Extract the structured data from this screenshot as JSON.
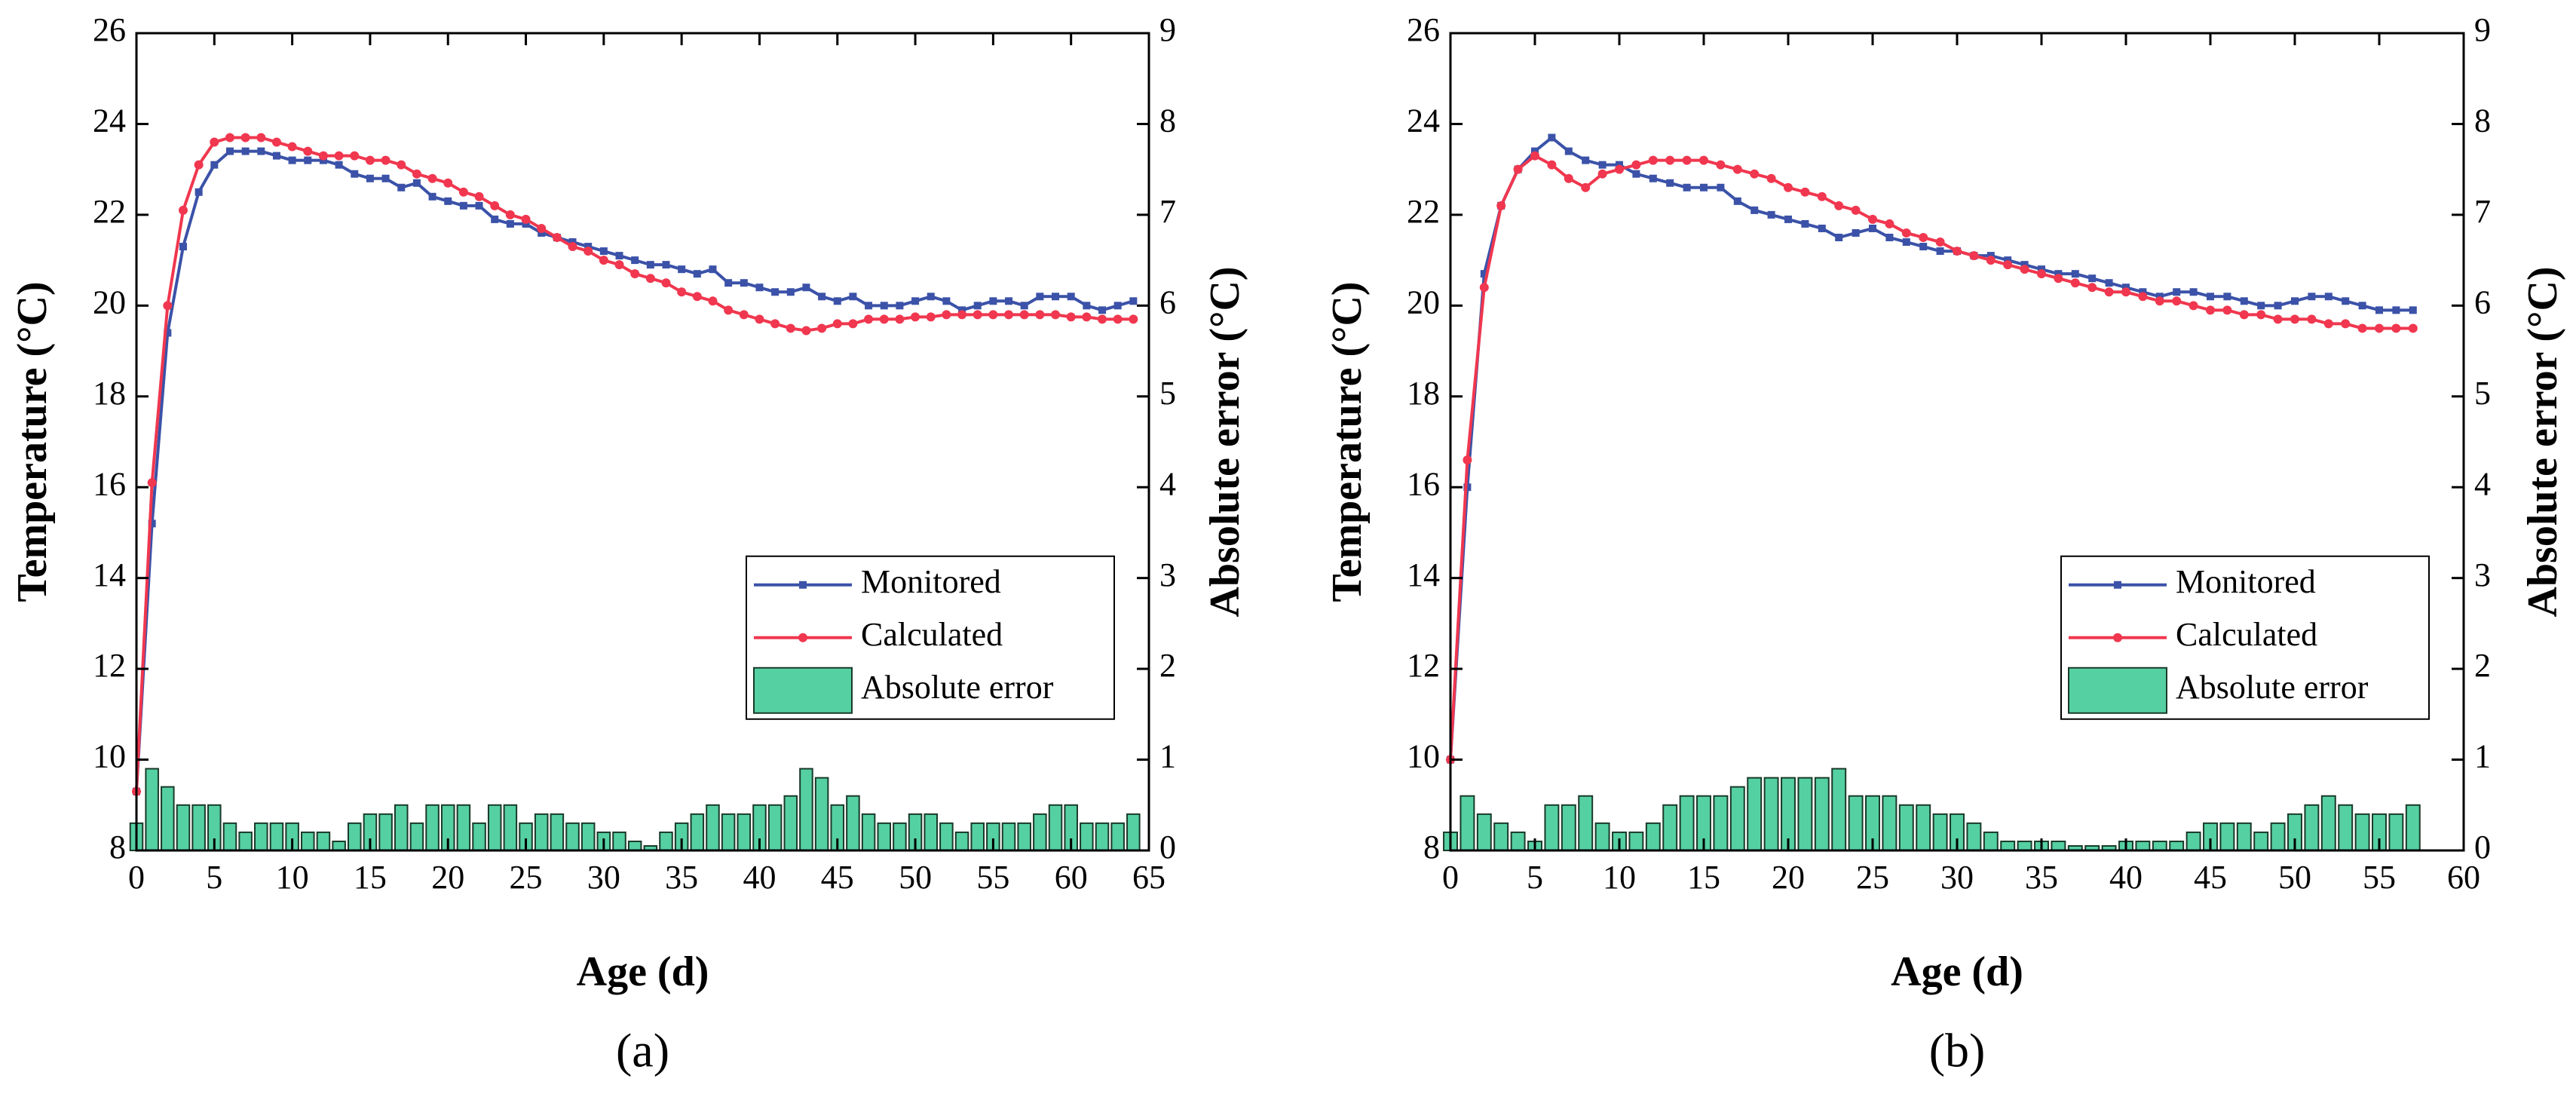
{
  "chart_data": [
    {
      "type": "line",
      "label": "(a)",
      "xlabel": "Age (d)",
      "ylabel": "Temperature (°C)",
      "y2label": "Absolute error (°C)",
      "xlim": [
        0,
        65
      ],
      "xticks": [
        0,
        5,
        10,
        15,
        20,
        25,
        30,
        35,
        40,
        45,
        50,
        55,
        60,
        65
      ],
      "ylim": [
        8,
        26
      ],
      "yticks": [
        8,
        10,
        12,
        14,
        16,
        18,
        20,
        22,
        24,
        26
      ],
      "y2lim": [
        0,
        9
      ],
      "y2ticks": [
        0,
        1,
        2,
        3,
        4,
        5,
        6,
        7,
        8,
        9
      ],
      "legend": "center right",
      "x": [
        0,
        1,
        2,
        3,
        4,
        5,
        6,
        7,
        8,
        9,
        10,
        11,
        12,
        13,
        14,
        15,
        16,
        17,
        18,
        19,
        20,
        21,
        22,
        23,
        24,
        25,
        26,
        27,
        28,
        29,
        30,
        31,
        32,
        33,
        34,
        35,
        36,
        37,
        38,
        39,
        40,
        41,
        42,
        43,
        44,
        45,
        46,
        47,
        48,
        49,
        50,
        51,
        52,
        53,
        54,
        55,
        56,
        57,
        58,
        59,
        60,
        61,
        62,
        63,
        64
      ],
      "series": [
        {
          "name": "Monitored",
          "color": "#3b52a8",
          "marker": "square",
          "values": [
            9.3,
            15.2,
            19.4,
            21.3,
            22.5,
            23.1,
            23.4,
            23.4,
            23.4,
            23.3,
            23.2,
            23.2,
            23.2,
            23.1,
            22.9,
            22.8,
            22.8,
            22.6,
            22.7,
            22.4,
            22.3,
            22.2,
            22.2,
            21.9,
            21.8,
            21.8,
            21.6,
            21.5,
            21.4,
            21.3,
            21.2,
            21.1,
            21.0,
            20.9,
            20.9,
            20.8,
            20.7,
            20.8,
            20.5,
            20.5,
            20.4,
            20.3,
            20.3,
            20.4,
            20.2,
            20.1,
            20.2,
            20.0,
            20.0,
            20.0,
            20.1,
            20.2,
            20.1,
            19.9,
            20.0,
            20.1,
            20.1,
            20.0,
            20.2,
            20.2,
            20.2,
            20.0,
            19.9,
            20.0,
            20.1
          ]
        },
        {
          "name": "Calculated",
          "color": "#f0374f",
          "marker": "circle",
          "values": [
            9.3,
            16.1,
            20.0,
            22.1,
            23.1,
            23.6,
            23.7,
            23.7,
            23.7,
            23.6,
            23.5,
            23.4,
            23.3,
            23.3,
            23.3,
            23.2,
            23.2,
            23.1,
            22.9,
            22.8,
            22.7,
            22.5,
            22.4,
            22.2,
            22.0,
            21.9,
            21.7,
            21.5,
            21.3,
            21.2,
            21.0,
            20.9,
            20.7,
            20.6,
            20.5,
            20.3,
            20.2,
            20.1,
            19.9,
            19.8,
            19.7,
            19.6,
            19.5,
            19.45,
            19.5,
            19.6,
            19.6,
            19.7,
            19.7,
            19.7,
            19.75,
            19.75,
            19.8,
            19.8,
            19.8,
            19.8,
            19.8,
            19.8,
            19.8,
            19.8,
            19.75,
            19.75,
            19.7,
            19.7,
            19.7
          ]
        },
        {
          "name": "Absolute error",
          "color": "#55d0a3",
          "type": "bar",
          "axis": "y2",
          "values": [
            0.3,
            0.9,
            0.7,
            0.5,
            0.5,
            0.5,
            0.3,
            0.2,
            0.3,
            0.3,
            0.3,
            0.2,
            0.2,
            0.1,
            0.3,
            0.4,
            0.4,
            0.5,
            0.3,
            0.5,
            0.5,
            0.5,
            0.3,
            0.5,
            0.5,
            0.3,
            0.4,
            0.4,
            0.3,
            0.3,
            0.2,
            0.2,
            0.1,
            0.05,
            0.2,
            0.3,
            0.4,
            0.5,
            0.4,
            0.4,
            0.5,
            0.5,
            0.6,
            0.9,
            0.8,
            0.5,
            0.6,
            0.4,
            0.3,
            0.3,
            0.4,
            0.4,
            0.3,
            0.2,
            0.3,
            0.3,
            0.3,
            0.3,
            0.4,
            0.5,
            0.5,
            0.3,
            0.3,
            0.3,
            0.4
          ]
        }
      ]
    },
    {
      "type": "line",
      "label": "(b)",
      "xlabel": "Age (d)",
      "ylabel": "Temperature (°C)",
      "y2label": "Absolute error (°C)",
      "xlim": [
        0,
        60
      ],
      "xticks": [
        0,
        5,
        10,
        15,
        20,
        25,
        30,
        35,
        40,
        45,
        50,
        55,
        60
      ],
      "ylim": [
        8,
        26
      ],
      "yticks": [
        8,
        10,
        12,
        14,
        16,
        18,
        20,
        22,
        24,
        26
      ],
      "y2lim": [
        0,
        9
      ],
      "y2ticks": [
        0,
        1,
        2,
        3,
        4,
        5,
        6,
        7,
        8,
        9
      ],
      "legend": "center right",
      "x": [
        0,
        1,
        2,
        3,
        4,
        5,
        6,
        7,
        8,
        9,
        10,
        11,
        12,
        13,
        14,
        15,
        16,
        17,
        18,
        19,
        20,
        21,
        22,
        23,
        24,
        25,
        26,
        27,
        28,
        29,
        30,
        31,
        32,
        33,
        34,
        35,
        36,
        37,
        38,
        39,
        40,
        41,
        42,
        43,
        44,
        45,
        46,
        47,
        48,
        49,
        50,
        51,
        52,
        53,
        54,
        55,
        56,
        57
      ],
      "series": [
        {
          "name": "Monitored",
          "color": "#3b52a8",
          "marker": "square",
          "values": [
            10.0,
            16.0,
            20.7,
            22.2,
            23.0,
            23.4,
            23.7,
            23.4,
            23.2,
            23.1,
            23.1,
            22.9,
            22.8,
            22.7,
            22.6,
            22.6,
            22.6,
            22.3,
            22.1,
            22.0,
            21.9,
            21.8,
            21.7,
            21.5,
            21.6,
            21.7,
            21.5,
            21.4,
            21.3,
            21.2,
            21.2,
            21.1,
            21.1,
            21.0,
            20.9,
            20.8,
            20.7,
            20.7,
            20.6,
            20.5,
            20.4,
            20.3,
            20.2,
            20.3,
            20.3,
            20.2,
            20.2,
            20.1,
            20.0,
            20.0,
            20.1,
            20.2,
            20.2,
            20.1,
            20.0,
            19.9,
            19.9,
            19.9
          ]
        },
        {
          "name": "Calculated",
          "color": "#f0374f",
          "marker": "circle",
          "values": [
            10.0,
            16.6,
            20.4,
            22.2,
            23.0,
            23.3,
            23.1,
            22.8,
            22.6,
            22.9,
            23.0,
            23.1,
            23.2,
            23.2,
            23.2,
            23.2,
            23.1,
            23.0,
            22.9,
            22.8,
            22.6,
            22.5,
            22.4,
            22.2,
            22.1,
            21.9,
            21.8,
            21.6,
            21.5,
            21.4,
            21.2,
            21.1,
            21.0,
            20.9,
            20.8,
            20.7,
            20.6,
            20.5,
            20.4,
            20.3,
            20.3,
            20.2,
            20.1,
            20.1,
            20.0,
            19.9,
            19.9,
            19.8,
            19.8,
            19.7,
            19.7,
            19.7,
            19.6,
            19.6,
            19.5,
            19.5,
            19.5,
            19.5
          ]
        },
        {
          "name": "Absolute error",
          "color": "#55d0a3",
          "type": "bar",
          "axis": "y2",
          "values": [
            0.2,
            0.6,
            0.4,
            0.3,
            0.2,
            0.1,
            0.5,
            0.5,
            0.6,
            0.3,
            0.2,
            0.2,
            0.3,
            0.5,
            0.6,
            0.6,
            0.6,
            0.7,
            0.8,
            0.8,
            0.8,
            0.8,
            0.8,
            0.9,
            0.6,
            0.6,
            0.6,
            0.5,
            0.5,
            0.4,
            0.4,
            0.3,
            0.2,
            0.1,
            0.1,
            0.1,
            0.1,
            0.05,
            0.05,
            0.05,
            0.1,
            0.1,
            0.1,
            0.1,
            0.2,
            0.3,
            0.3,
            0.3,
            0.2,
            0.3,
            0.4,
            0.5,
            0.6,
            0.5,
            0.4,
            0.4,
            0.4,
            0.5
          ]
        }
      ]
    }
  ]
}
